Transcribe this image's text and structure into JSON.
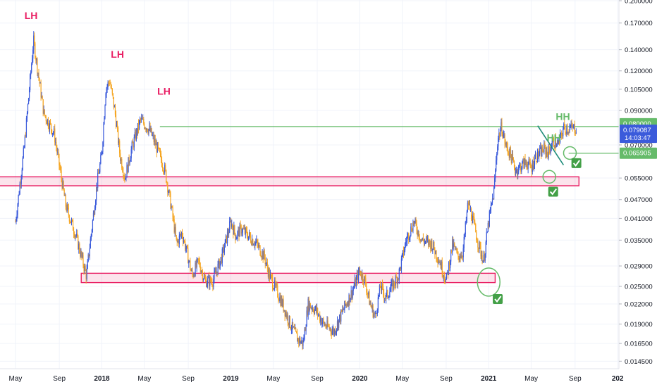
{
  "chart_data": {
    "type": "candlestick",
    "x_labels": [
      "May",
      "Sep",
      "2018",
      "May",
      "Sep",
      "2019",
      "May",
      "Sep",
      "2020",
      "May",
      "Sep",
      "2021",
      "May",
      "Sep",
      "202"
    ],
    "y_ticks": [
      "0.200000",
      "0.170000",
      "0.140000",
      "0.120000",
      "0.105000",
      "0.090000",
      "0.080000",
      "0.070000",
      "0.065905",
      "0.055000",
      "0.047000",
      "0.041000",
      "0.035000",
      "0.029000",
      "0.025000",
      "0.022000",
      "0.019000",
      "0.016500",
      "0.014500"
    ],
    "y_scale": "log",
    "y_range": [
      0.0138,
      0.2
    ],
    "series": [
      {
        "x": [
          2017.33,
          2017.4,
          2017.47,
          2017.55,
          2017.63,
          2017.72,
          2017.8,
          2017.88,
          2017.96,
          2018.0,
          2018.03,
          2018.06,
          2018.1,
          2018.14,
          2018.18,
          2018.23,
          2018.3,
          2018.37,
          2018.43,
          2018.49,
          2018.54,
          2018.58,
          2018.62,
          2018.66,
          2018.7,
          2018.75,
          2018.8,
          2018.86,
          2018.93,
          2019.0,
          2019.04,
          2019.08,
          2019.14,
          2019.2,
          2019.26,
          2019.3,
          2019.34,
          2019.4,
          2019.46,
          2019.52,
          2019.56,
          2019.6,
          2019.66,
          2019.72,
          2019.8,
          2019.87,
          2019.94,
          2020.0,
          2020.04,
          2020.08,
          2020.12,
          2020.16,
          2020.2,
          2020.25,
          2020.3,
          2020.36,
          2020.42,
          2020.48,
          2020.56,
          2020.62,
          2020.67,
          2020.72,
          2020.76,
          2020.8,
          2020.84,
          2020.88,
          2020.92,
          2020.96,
          2021.0,
          2021.04,
          2021.07,
          2021.1,
          2021.13,
          2021.17,
          2021.21,
          2021.25,
          2021.29,
          2021.33,
          2021.36,
          2021.4,
          2021.43,
          2021.46,
          2021.5,
          2021.54,
          2021.58,
          2021.62,
          2021.66,
          2021.68
        ],
        "y": [
          0.04,
          0.07,
          0.15,
          0.088,
          0.076,
          0.045,
          0.036,
          0.027,
          0.052,
          0.066,
          0.105,
          0.112,
          0.09,
          0.065,
          0.055,
          0.068,
          0.084,
          0.078,
          0.068,
          0.058,
          0.044,
          0.034,
          0.037,
          0.032,
          0.027,
          0.03,
          0.026,
          0.026,
          0.031,
          0.04,
          0.036,
          0.038,
          0.036,
          0.034,
          0.031,
          0.027,
          0.025,
          0.022,
          0.019,
          0.017,
          0.0165,
          0.022,
          0.021,
          0.019,
          0.018,
          0.021,
          0.024,
          0.028,
          0.026,
          0.022,
          0.02,
          0.025,
          0.023,
          0.025,
          0.027,
          0.035,
          0.04,
          0.035,
          0.034,
          0.03,
          0.026,
          0.034,
          0.031,
          0.032,
          0.046,
          0.04,
          0.034,
          0.03,
          0.04,
          0.05,
          0.073,
          0.08,
          0.07,
          0.065,
          0.058,
          0.06,
          0.062,
          0.059,
          0.064,
          0.066,
          0.068,
          0.066,
          0.072,
          0.07,
          0.079,
          0.079,
          0.079,
          0.079
        ]
      }
    ],
    "annotations": [
      {
        "text": "LH",
        "x": 2017.4,
        "y": 0.175,
        "color": "#e91e63"
      },
      {
        "text": "LH",
        "x": 2018.07,
        "y": 0.132,
        "color": "#e91e63"
      },
      {
        "text": "LH",
        "x": 2018.43,
        "y": 0.101,
        "color": "#e91e63"
      },
      {
        "text": "HH",
        "x": 2021.52,
        "y": 0.084,
        "color": "#66bb6a"
      },
      {
        "text": "HH",
        "x": 2021.45,
        "y": 0.072,
        "color": "#66bb6a"
      }
    ],
    "price_labels": [
      {
        "text": "0.080000",
        "y": 0.08,
        "color": "#66bb6a"
      },
      {
        "text": "0.079087",
        "y": 0.079087,
        "color": "#3b5bdb"
      },
      {
        "text": "0.065905",
        "y": 0.065905,
        "color": "#66bb6a"
      }
    ],
    "countdown_label": "14:03:47",
    "levels": [
      {
        "y": 0.08,
        "x_start": 2018.45,
        "x_end": 2021.74,
        "color": "#66bb6a"
      },
      {
        "y": 0.065905,
        "x_start": 2021.62,
        "x_end": 2021.74,
        "color": "#66bb6a"
      }
    ],
    "zones": [
      {
        "x_start": 2017.1,
        "x_end": 2021.7,
        "y_low": 0.052,
        "y_high": 0.0555,
        "color": "#e91e63"
      },
      {
        "x_start": 2017.84,
        "x_end": 2021.05,
        "y_low": 0.0257,
        "y_high": 0.0275,
        "color": "#e91e63"
      }
    ],
    "trendline": {
      "x1": 2021.38,
      "y1": 0.0805,
      "x2": 2021.58,
      "y2": 0.0605,
      "color": "#1e8c7a"
    },
    "circles": [
      {
        "x": 2021.0,
        "y": 0.0258,
        "color": "#66bb6a"
      },
      {
        "x": 2021.47,
        "y": 0.0555,
        "color": "#66bb6a"
      },
      {
        "x": 2021.63,
        "y": 0.066,
        "color": "#66bb6a"
      }
    ],
    "checks": [
      {
        "x": 2021.07,
        "y": 0.0228
      },
      {
        "x": 2021.5,
        "y": 0.0498
      },
      {
        "x": 2021.68,
        "y": 0.0613
      }
    ],
    "colors": {
      "up": "#3b5bdb",
      "down": "#f5a623"
    }
  }
}
